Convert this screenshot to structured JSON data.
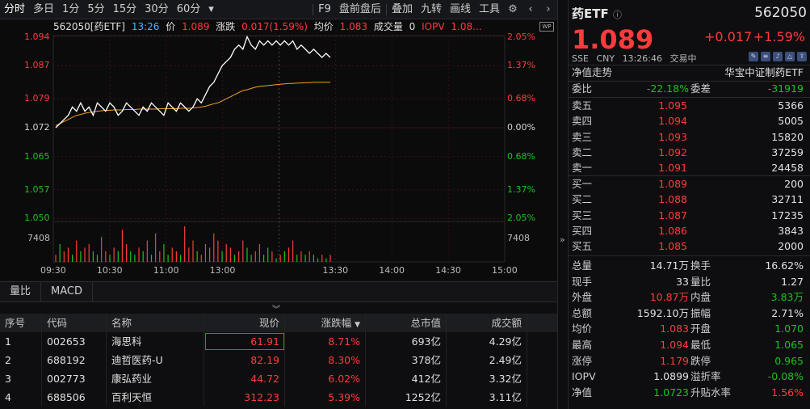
{
  "toolbar": {
    "left_tabs": [
      "分时",
      "多日",
      "1分",
      "5分",
      "15分",
      "30分",
      "60分"
    ],
    "right_tabs": [
      "F9",
      "盘前盘后",
      "叠加",
      "九转",
      "画线",
      "工具"
    ],
    "icons": [
      "settings-icon",
      "chevron-left-icon",
      "chevron-right-icon"
    ]
  },
  "chart_info": {
    "code_name": "562050[药ETF]",
    "time": "13:26",
    "price_label": "价",
    "price": "1.089",
    "change_label": "涨跌",
    "change": "0.017(1.59%)",
    "avg_label": "均价",
    "avg": "1.083",
    "volume_label": "成交量",
    "volume": "0",
    "iopv_label": "IOPV",
    "iopv": "1.08...",
    "badge": "WP"
  },
  "chart_data": {
    "type": "line",
    "y_price_ticks": [
      "1.094",
      "1.087",
      "1.079",
      "1.072",
      "1.065",
      "1.057",
      "1.050"
    ],
    "y_pct_ticks": [
      "2.05%",
      "1.37%",
      "0.68%",
      "0.00%",
      "0.68%",
      "1.37%",
      "2.05%"
    ],
    "volume_tick": "7408",
    "x_ticks": [
      "09:30",
      "10:30",
      "11:00",
      "13:00",
      "13:30",
      "14:00",
      "14:30",
      "15:00"
    ],
    "ylim": [
      1.0497,
      1.0943
    ],
    "prev_close": 1.072,
    "colors": {
      "price": "#ffffff",
      "avg": "#f0a020",
      "up": "#ff3b3b",
      "down": "#1ec21e",
      "grid": "#3a1212"
    },
    "series": [
      {
        "values": [
          1.072,
          1.073,
          1.074,
          1.075,
          1.077,
          1.076,
          1.078,
          1.076,
          1.077,
          1.075,
          1.078,
          1.077,
          1.076,
          1.078,
          1.077,
          1.075,
          1.076,
          1.078,
          1.077,
          1.076,
          1.075,
          1.077,
          1.076,
          1.078,
          1.077,
          1.076,
          1.075,
          1.078,
          1.077,
          1.076,
          1.078,
          1.077,
          1.076,
          1.077,
          1.079,
          1.078,
          1.08,
          1.082,
          1.083,
          1.085,
          1.087,
          1.088,
          1.089,
          1.091,
          1.092,
          1.091,
          1.094,
          1.092,
          1.091,
          1.093,
          1.092,
          1.093,
          1.092,
          1.093,
          1.092,
          1.093,
          1.092,
          1.093,
          1.091,
          1.092,
          1.091,
          1.09,
          1.091,
          1.09,
          1.089,
          1.09,
          1.089
        ]
      },
      {
        "values": [
          1.0725,
          1.073,
          1.0735,
          1.074,
          1.0745,
          1.075,
          1.0752,
          1.0755,
          1.0757,
          1.0758,
          1.076,
          1.0761,
          1.0762,
          1.0762,
          1.0763,
          1.0763,
          1.0763,
          1.0764,
          1.0764,
          1.0764,
          1.0765,
          1.0765,
          1.0765,
          1.0765,
          1.0765,
          1.0766,
          1.0766,
          1.0766,
          1.0766,
          1.0766,
          1.0767,
          1.0767,
          1.0767,
          1.0768,
          1.0769,
          1.077,
          1.0772,
          1.0775,
          1.0778,
          1.078,
          1.0785,
          1.079,
          1.0795,
          1.08,
          1.0805,
          1.081,
          1.0812,
          1.0815,
          1.0818,
          1.082,
          1.0821,
          1.0822,
          1.0823,
          1.0824,
          1.0825,
          1.0826,
          1.0827,
          1.0827,
          1.0828,
          1.0828,
          1.0829,
          1.0829,
          1.083,
          1.083,
          1.083,
          1.083,
          1.083
        ]
      }
    ],
    "volume": [
      2,
      5,
      3,
      4,
      2,
      6,
      3,
      4,
      5,
      3,
      2,
      7,
      3,
      2,
      4,
      3,
      9,
      5,
      3,
      2,
      4,
      3,
      6,
      2,
      8,
      3,
      5,
      2,
      4,
      3,
      2,
      10,
      4,
      6,
      3,
      2,
      5,
      4,
      8,
      6,
      3,
      5,
      4,
      2,
      3,
      6,
      4,
      2,
      3,
      5,
      2,
      4,
      3,
      1,
      2,
      3,
      4,
      6,
      2,
      3,
      2,
      3,
      2,
      1,
      2,
      1,
      2
    ],
    "volume_up": [
      1,
      0,
      1,
      1,
      0,
      1,
      0,
      1,
      1,
      0,
      0,
      1,
      1,
      0,
      1,
      0,
      1,
      1,
      0,
      0,
      1,
      0,
      1,
      0,
      1,
      1,
      0,
      0,
      1,
      1,
      0,
      1,
      1,
      1,
      0,
      1,
      1,
      1,
      1,
      1,
      0,
      1,
      1,
      0,
      1,
      1,
      0,
      0,
      1,
      1,
      0,
      0,
      1,
      0,
      1,
      0,
      1,
      1,
      0,
      1,
      0,
      1,
      0,
      0,
      1,
      0,
      1
    ]
  },
  "subtabs": [
    "量比",
    "MACD"
  ],
  "table": {
    "headers": [
      "序号",
      "代码",
      "名称",
      "现价",
      "涨跌幅",
      "总市值",
      "成交额"
    ],
    "rows": [
      [
        "1",
        "002653",
        "海思科",
        "61.91",
        "8.71%",
        "693亿",
        "4.29亿"
      ],
      [
        "2",
        "688192",
        "迪哲医药-U",
        "82.19",
        "8.30%",
        "378亿",
        "2.49亿"
      ],
      [
        "3",
        "002773",
        "康弘药业",
        "44.72",
        "6.02%",
        "412亿",
        "3.32亿"
      ],
      [
        "4",
        "688506",
        "百利天恒",
        "312.23",
        "5.39%",
        "1252亿",
        "3.11亿"
      ]
    ]
  },
  "quote": {
    "name": "药ETF",
    "code": "562050",
    "price": "1.089",
    "change": "+0.017",
    "change_pct": "+1.59%",
    "exchange": "SSE",
    "currency": "CNY",
    "time": "13:26:46",
    "status": "交易中",
    "nav_trend": "净值走势",
    "fund_name": "华宝中证制药ETF",
    "weibi_label": "委比",
    "weibi": "-22.18%",
    "weicha_label": "委差",
    "weicha": "-31919"
  },
  "sells": [
    {
      "label": "卖五",
      "price": "1.095",
      "qty": "5366"
    },
    {
      "label": "卖四",
      "price": "1.094",
      "qty": "5005"
    },
    {
      "label": "卖三",
      "price": "1.093",
      "qty": "15820"
    },
    {
      "label": "卖二",
      "price": "1.092",
      "qty": "37259"
    },
    {
      "label": "卖一",
      "price": "1.091",
      "qty": "24458"
    }
  ],
  "buys": [
    {
      "label": "买一",
      "price": "1.089",
      "qty": "200"
    },
    {
      "label": "买二",
      "price": "1.088",
      "qty": "32711"
    },
    {
      "label": "买三",
      "price": "1.087",
      "qty": "17235"
    },
    {
      "label": "买四",
      "price": "1.086",
      "qty": "3843"
    },
    {
      "label": "买五",
      "price": "1.085",
      "qty": "2000"
    }
  ],
  "stats": [
    {
      "k1": "总量",
      "v1": "14.71万",
      "k2": "换手",
      "v2": "16.62%"
    },
    {
      "k1": "现手",
      "v1": "33",
      "k2": "量比",
      "v2": "1.27"
    },
    {
      "k1": "外盘",
      "v1": "10.87万",
      "k2": "内盘",
      "v2": "3.83万"
    },
    {
      "k1": "总额",
      "v1": "1592.10万",
      "k2": "振幅",
      "v2": "2.71%"
    },
    {
      "k1": "均价",
      "v1": "1.083",
      "k2": "开盘",
      "v2": "1.070"
    },
    {
      "k1": "最高",
      "v1": "1.094",
      "k2": "最低",
      "v2": "1.065"
    },
    {
      "k1": "涨停",
      "v1": "1.179",
      "k2": "跌停",
      "v2": "0.965"
    },
    {
      "k1": "IOPV",
      "v1": "1.0899",
      "k2": "溢折率",
      "v2": "-0.08%"
    },
    {
      "k1": "净值",
      "v1": "1.0723",
      "k2": "升贴水率",
      "v2": "1.56%"
    }
  ]
}
